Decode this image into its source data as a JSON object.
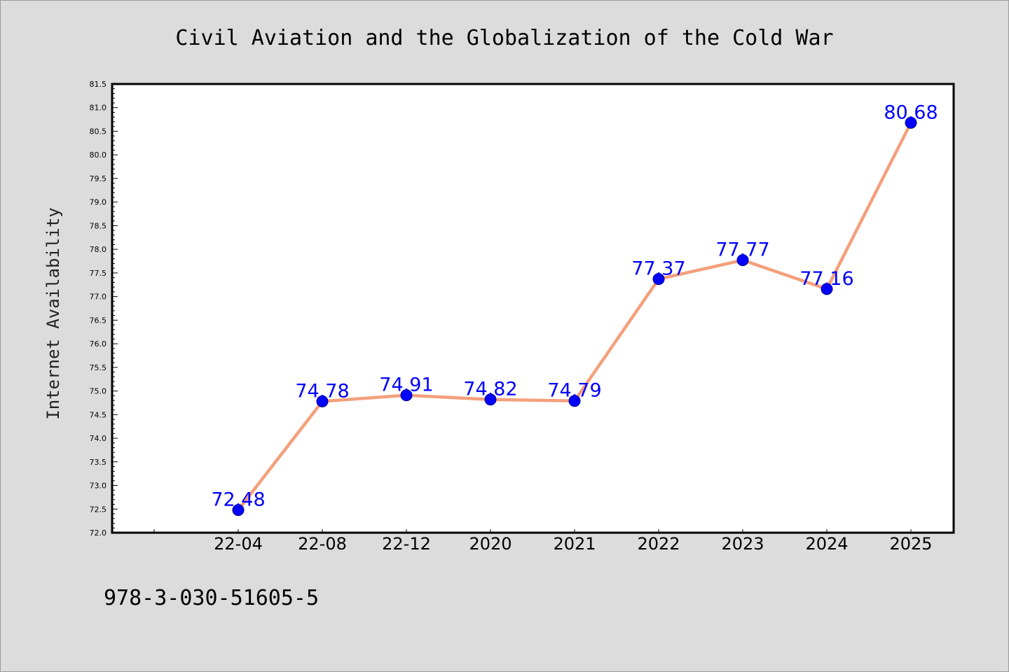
{
  "chart_data": {
    "type": "line",
    "title": "Civil Aviation and the Globalization of the Cold War",
    "xlabel": "",
    "ylabel": "Internet Availability",
    "categories": [
      "22-04",
      "22-08",
      "22-12",
      "2020",
      "2021",
      "2022",
      "2023",
      "2024",
      "2025"
    ],
    "series": [
      {
        "values": [
          72.48,
          74.78,
          74.91,
          74.82,
          74.79,
          77.37,
          77.77,
          77.16,
          80.68
        ]
      }
    ],
    "data_labels": [
      "72.48",
      "74.78",
      "74.91",
      "74.82",
      "74.79",
      "77.37",
      "77.77",
      "77.16",
      "80.68"
    ],
    "ylim": [
      72.0,
      81.5
    ],
    "y_ticks": [
      "72.0",
      "72.5",
      "73.0",
      "73.5",
      "74.0",
      "74.5",
      "75.0",
      "75.5",
      "76.0",
      "76.5",
      "77.0",
      "77.5",
      "78.0",
      "78.5",
      "79.0",
      "79.5",
      "80.0",
      "80.5",
      "81.0",
      "81.5"
    ],
    "grid": false,
    "legend": "none",
    "colors": {
      "line": "#f4a07c",
      "marker": "#0000ff",
      "data_label": "#0000ff",
      "background": "#dcdcdc",
      "plot_area": "#ffffff"
    }
  },
  "footer": {
    "text": "978-3-030-51605-5"
  }
}
